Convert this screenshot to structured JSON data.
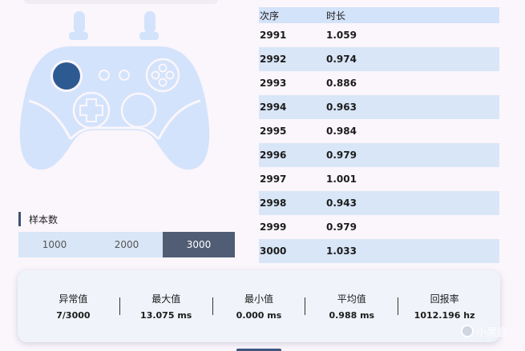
{
  "colors": {
    "background": "#fbf6fc",
    "controller": "#d3e3fb",
    "joystick_active": "#2e5a92",
    "segment_active": "#505d74",
    "row_alt": "#d8e6f7"
  },
  "controller": {
    "icon": "gamepad-icon",
    "active_stick": "left-stick"
  },
  "sample": {
    "title": "样本数",
    "options": [
      "1000",
      "2000",
      "3000"
    ],
    "selected": "3000"
  },
  "table": {
    "headers": [
      "次序",
      "时长"
    ],
    "rows": [
      [
        "2991",
        "1.059"
      ],
      [
        "2992",
        "0.974"
      ],
      [
        "2993",
        "0.886"
      ],
      [
        "2994",
        "0.963"
      ],
      [
        "2995",
        "0.984"
      ],
      [
        "2996",
        "0.979"
      ],
      [
        "2997",
        "1.001"
      ],
      [
        "2998",
        "0.943"
      ],
      [
        "2999",
        "0.979"
      ],
      [
        "3000",
        "1.033"
      ]
    ]
  },
  "stats": [
    {
      "label": "异常值",
      "value": "7/3000"
    },
    {
      "label": "最大值",
      "value": "13.075 ms"
    },
    {
      "label": "最小值",
      "value": "0.000 ms"
    },
    {
      "label": "平均值",
      "value": "0.988 ms"
    },
    {
      "label": "回报率",
      "value": "1012.196 hz"
    }
  ],
  "watermark": {
    "text": "小黑盒"
  }
}
